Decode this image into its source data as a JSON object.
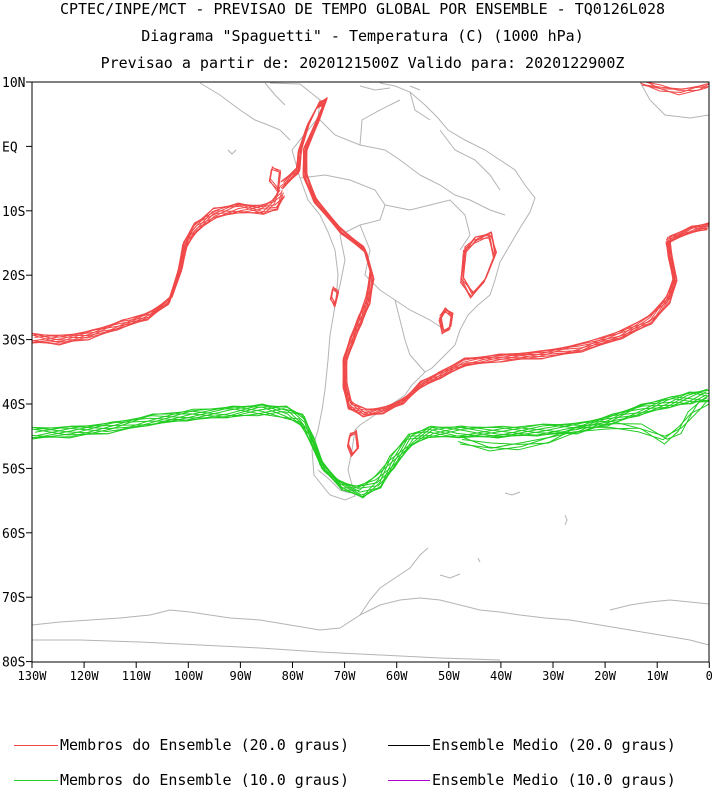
{
  "header": {
    "line1": "CPTEC/INPE/MCT - PREVISAO DE TEMPO GLOBAL POR ENSEMBLE - TQ0126L028",
    "line2": "Diagrama \"Spaguetti\" - Temperatura (C) (1000 hPa)",
    "line3": "Previsao a partir de: 2020121500Z  Valido para: 2020122900Z"
  },
  "map": {
    "lat_labels": [
      "10N",
      "EQ",
      "10S",
      "20S",
      "30S",
      "40S",
      "50S",
      "60S",
      "70S",
      "80S"
    ],
    "lon_labels": [
      "130W",
      "120W",
      "110W",
      "100W",
      "90W",
      "80W",
      "70W",
      "60W",
      "50W",
      "40W",
      "30W",
      "20W",
      "10W",
      "0"
    ],
    "colors": {
      "members_20": "#f04848",
      "members_10": "#22cc22",
      "mean_20": "#000000",
      "mean_10": "#aa00cc",
      "coast": "#b4b4b4"
    }
  },
  "legend": [
    {
      "label": "Membros do Ensemble (20.0 graus)",
      "color": "#f04848"
    },
    {
      "label": "Ensemble Medio (20.0 graus)",
      "color": "#000000"
    },
    {
      "label": "Membros do Ensemble (10.0 graus)",
      "color": "#22cc22"
    },
    {
      "label": "Ensemble Medio (10.0 graus)",
      "color": "#aa00cc"
    }
  ]
}
